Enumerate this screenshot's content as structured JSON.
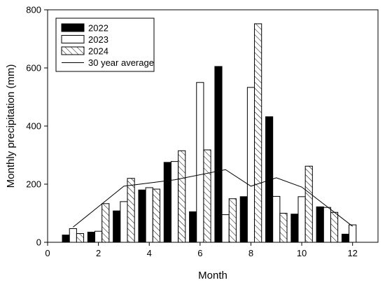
{
  "chart_data": {
    "type": "bar",
    "xlabel": "Month",
    "ylabel": "Monthly precipitation (mm)",
    "xlim": [
      0,
      13
    ],
    "ylim": [
      0,
      800
    ],
    "x_ticks": [
      0,
      2,
      4,
      6,
      8,
      10,
      12
    ],
    "y_ticks": [
      0,
      200,
      400,
      600,
      800
    ],
    "x_tick_labels": [
      "0",
      "2",
      "4",
      "6",
      "8",
      "10",
      "12"
    ],
    "y_tick_labels": [
      "0",
      "200",
      "400",
      "600",
      "800"
    ],
    "grid": false,
    "legend_position": "top-left",
    "months": [
      1,
      2,
      3,
      4,
      5,
      6,
      7,
      8,
      9,
      10,
      11,
      12
    ],
    "series": [
      {
        "name": "2022",
        "kind": "bar",
        "fill": "#000000",
        "pattern": "solid",
        "values": [
          25,
          35,
          108,
          180,
          275,
          105,
          605,
          157,
          432,
          97,
          122,
          28
        ]
      },
      {
        "name": "2023",
        "kind": "bar",
        "fill": "#ffffff",
        "pattern": "open",
        "values": [
          47,
          38,
          140,
          188,
          278,
          550,
          95,
          533,
          158,
          157,
          120,
          60
        ]
      },
      {
        "name": "2024",
        "kind": "bar",
        "fill": "#ffffff",
        "pattern": "hatch",
        "values": [
          30,
          133,
          220,
          183,
          315,
          318,
          150,
          752,
          100,
          262,
          103,
          null
        ]
      },
      {
        "name": "30 year average",
        "kind": "line",
        "color": "#000000",
        "x": [
          1,
          3,
          5,
          7,
          8,
          9,
          10,
          12
        ],
        "values": [
          52,
          193,
          215,
          250,
          193,
          222,
          190,
          55
        ]
      }
    ]
  }
}
